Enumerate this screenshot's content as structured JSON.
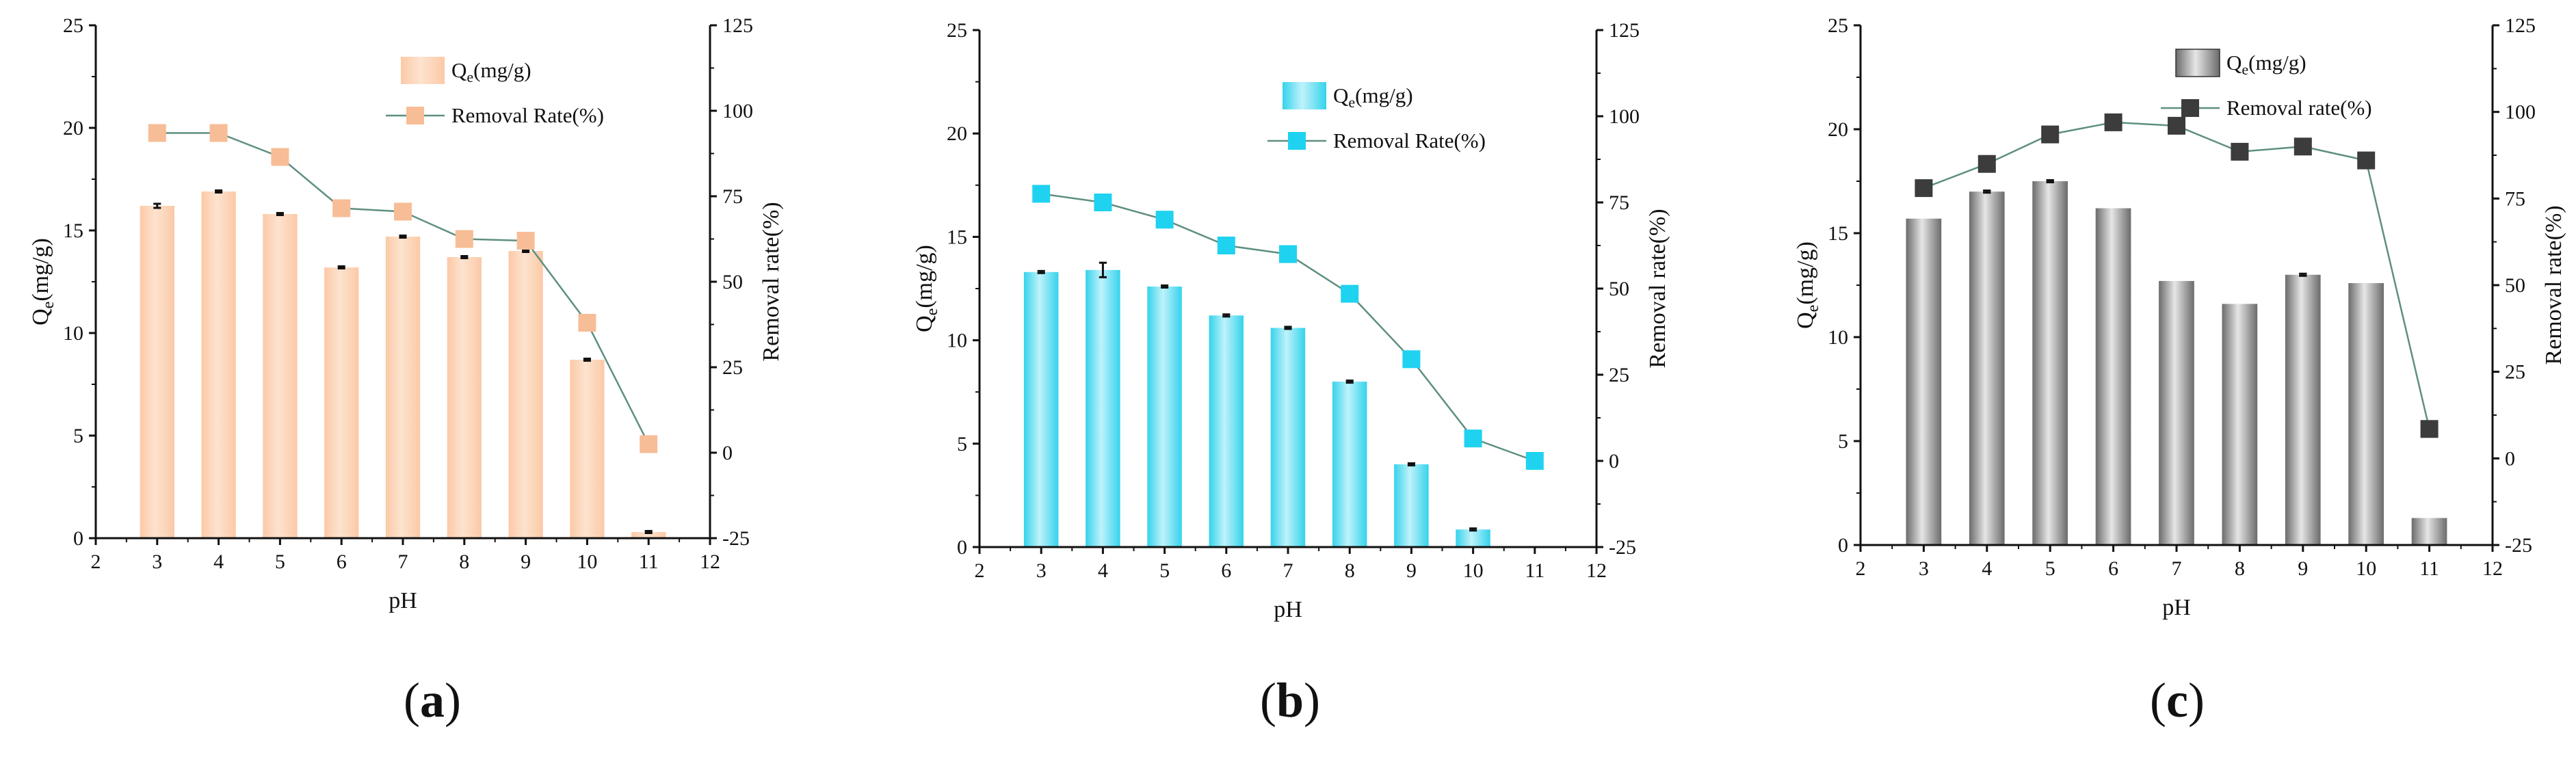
{
  "colors": {
    "panel_a_bar": "#fcc9a6",
    "panel_a_bar_light": "#fde3cf",
    "panel_a_marker": "#f7bd96",
    "panel_b_bar": "#35d3ec",
    "panel_b_bar_light": "#bff2fa",
    "panel_b_marker": "#1fd2f0",
    "panel_c_bar_dark": "#6b6b6b",
    "panel_c_bar_light": "#e6e6e6",
    "panel_c_marker": "#3c3c3c",
    "line": "#5e8f80"
  },
  "chart_data": [
    {
      "type": "bar+line",
      "panel_label": "a",
      "xlabel": "pH",
      "ylabel_left": "Q",
      "ylabel_left_sub": "e",
      "ylabel_left_unit": "(mg/g)",
      "ylabel_right": "Removal rate(%)",
      "xlim": [
        2,
        12
      ],
      "xticks": [
        "2",
        "3",
        "4",
        "5",
        "6",
        "7",
        "8",
        "9",
        "10",
        "11",
        "12"
      ],
      "ylim_left": [
        0,
        25
      ],
      "yticks_left": [
        "0",
        "5",
        "10",
        "15",
        "20",
        "25"
      ],
      "ylim_right": [
        -25,
        125
      ],
      "yticks_right": [
        "-25",
        "0",
        "25",
        "50",
        "75",
        "100",
        "125"
      ],
      "legend_position": "top-right",
      "legend_bar": {
        "main": "Q",
        "sub": "e",
        "rest": "(mg/g)"
      },
      "legend_line": "Removal Rate(%)",
      "x": [
        3,
        4,
        5,
        6,
        7,
        8,
        9,
        10,
        11
      ],
      "series": [
        {
          "name": "Qe(mg/g)",
          "kind": "bar",
          "values": [
            16.2,
            16.9,
            15.8,
            13.2,
            14.7,
            13.7,
            14.0,
            8.7,
            0.3
          ],
          "errors": [
            0.1,
            0.05,
            0.05,
            0.05,
            0.05,
            0.05,
            0.05,
            0.05,
            0.05
          ]
        },
        {
          "name": "Removal Rate(%)",
          "kind": "line",
          "values": [
            93.5,
            93.5,
            86.5,
            71.5,
            70.5,
            62.5,
            62.0,
            38.0,
            2.5
          ]
        }
      ]
    },
    {
      "type": "bar+line",
      "panel_label": "b",
      "xlabel": "pH",
      "ylabel_left": "Q",
      "ylabel_left_sub": "e",
      "ylabel_left_unit": "(mg/g)",
      "ylabel_right": "Removal rate(%)",
      "xlim": [
        2,
        12
      ],
      "xticks": [
        "2",
        "3",
        "4",
        "5",
        "6",
        "7",
        "8",
        "9",
        "10",
        "11",
        "12"
      ],
      "ylim_left": [
        0,
        25
      ],
      "yticks_left": [
        "0",
        "5",
        "10",
        "15",
        "20",
        "25"
      ],
      "ylim_right": [
        -25,
        125
      ],
      "yticks_right": [
        "-25",
        "0",
        "25",
        "50",
        "75",
        "100",
        "125"
      ],
      "legend_position": "top-right",
      "legend_bar": {
        "main": "Q",
        "sub": "e",
        "rest": "(mg/g)"
      },
      "legend_line": "Removal Rate(%)",
      "x": [
        3,
        4,
        5,
        6,
        7,
        8,
        9,
        10,
        11
      ],
      "series": [
        {
          "name": "Qe(mg/g)",
          "kind": "bar",
          "values": [
            13.3,
            13.4,
            12.6,
            11.2,
            10.6,
            8.0,
            4.0,
            0.85,
            0
          ],
          "errors": [
            0.05,
            0.35,
            0.05,
            0.05,
            0.05,
            0.05,
            0.05,
            0.05,
            0
          ]
        },
        {
          "name": "Removal Rate(%)",
          "kind": "line",
          "values": [
            77.5,
            75.0,
            70.0,
            62.5,
            60.0,
            48.5,
            29.5,
            6.5,
            0.0
          ]
        }
      ]
    },
    {
      "type": "bar+line",
      "panel_label": "c",
      "xlabel": "pH",
      "ylabel_left": "Q",
      "ylabel_left_sub": "e",
      "ylabel_left_unit": "(mg/g)",
      "ylabel_right": "Removal rate(%)",
      "xlim": [
        2,
        12
      ],
      "xticks": [
        "2",
        "3",
        "4",
        "5",
        "6",
        "7",
        "8",
        "9",
        "10",
        "11",
        "12"
      ],
      "ylim_left": [
        0,
        25
      ],
      "yticks_left": [
        "0",
        "5",
        "10",
        "15",
        "20",
        "25"
      ],
      "ylim_right": [
        -25,
        125
      ],
      "yticks_right": [
        "-25",
        "0",
        "25",
        "50",
        "75",
        "100",
        "125"
      ],
      "legend_position": "top-right",
      "legend_bar": {
        "main": "Q",
        "sub": "e",
        "rest": "(mg/g)"
      },
      "legend_line": "Removal rate(%)",
      "x": [
        3,
        4,
        5,
        6,
        7,
        8,
        9,
        10,
        11
      ],
      "series": [
        {
          "name": "Qe(mg/g)",
          "kind": "bar",
          "values": [
            15.7,
            17.0,
            17.5,
            16.2,
            12.7,
            11.6,
            13.0,
            12.6,
            1.3
          ],
          "errors": [
            0.0,
            0.05,
            0.05,
            0.0,
            0.0,
            0.0,
            0.05,
            0.0,
            0.0
          ]
        },
        {
          "name": "Removal rate(%)",
          "kind": "line",
          "values": [
            78.0,
            85.0,
            93.5,
            97.0,
            96.0,
            88.5,
            90.0,
            86.0,
            8.5
          ]
        }
      ]
    }
  ]
}
